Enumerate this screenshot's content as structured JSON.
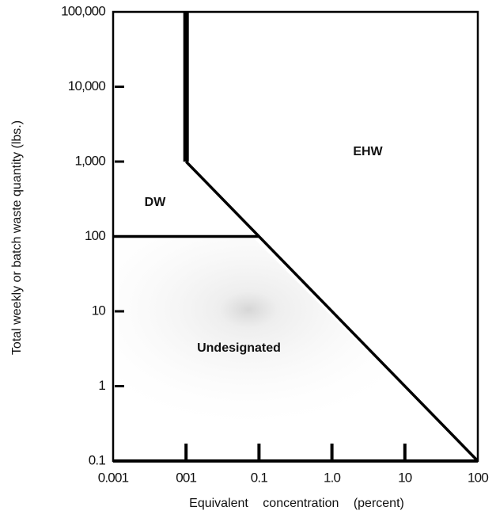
{
  "chart_data": {
    "type": "line",
    "x_label": "Equivalent concentration (percent)",
    "y_label": "Total weekly or batch waste quantity (lbs.)",
    "log_x": true,
    "log_y": true,
    "xlim": [
      0.001,
      100
    ],
    "ylim": [
      0.1,
      100000
    ],
    "xticks": [
      {
        "value": 0.001,
        "label": "0.001"
      },
      {
        "value": 0.01,
        "label": "001"
      },
      0.1,
      {
        "value": 1,
        "label": "1.0"
      },
      10,
      100
    ],
    "yticks": [
      0.1,
      1,
      10,
      100,
      {
        "value": 1000,
        "label": "1,000"
      },
      {
        "value": 10000,
        "label": "10,000"
      },
      {
        "value": 100000,
        "label": "100,000"
      }
    ],
    "series": [
      {
        "color": "#000000",
        "x": [
          0.01,
          0.01
        ],
        "values": [
          1000,
          100000
        ]
      },
      {
        "color": "#000000",
        "x": [
          0.01,
          100
        ],
        "values": [
          1000,
          0.1
        ]
      },
      {
        "color": "#000000",
        "x": [
          0.001,
          0.1
        ],
        "values": [
          100,
          100
        ]
      }
    ],
    "annotations": [
      "EHW",
      "DW",
      "Undesignated"
    ]
  }
}
